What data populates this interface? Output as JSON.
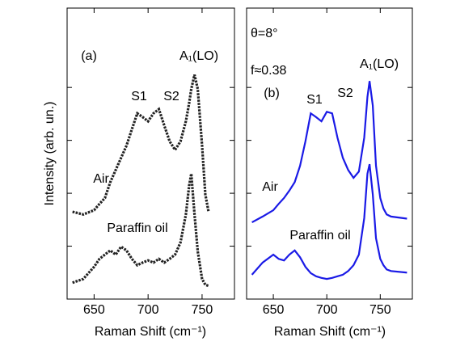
{
  "chart_data": [
    {
      "type": "line",
      "panel": "(a)",
      "ylabel": "Intensity (arb. un.)",
      "xlabel": "Raman Shift (cm⁻¹)",
      "annotations": [
        "S1",
        "S2",
        "A₁(LO)",
        "Air",
        "Paraffin oil"
      ],
      "xlim": [
        625,
        780
      ],
      "xticks": [
        650,
        700,
        750
      ],
      "ylim": [
        0,
        5.5
      ],
      "yticks": [
        1,
        2,
        3,
        4
      ],
      "x": [
        630,
        640,
        650,
        655,
        660,
        665,
        670,
        675,
        680,
        685,
        690,
        695,
        700,
        705,
        710,
        715,
        720,
        725,
        730,
        735,
        738,
        740,
        743,
        746,
        750,
        753,
        756
      ],
      "series": [
        {
          "name": "Air",
          "color": "#222222",
          "style": "dotted",
          "values": [
            1.65,
            1.6,
            1.68,
            1.8,
            1.91,
            2.21,
            2.44,
            2.67,
            2.9,
            3.21,
            3.51,
            3.44,
            3.36,
            3.51,
            3.59,
            3.28,
            2.98,
            2.82,
            2.98,
            3.36,
            3.7,
            3.97,
            4.24,
            3.97,
            2.9,
            1.98,
            1.65
          ]
        },
        {
          "name": "Paraffin oil",
          "color": "#222222",
          "style": "dotted",
          "values": [
            0.31,
            0.38,
            0.61,
            0.76,
            0.84,
            0.92,
            0.84,
            0.99,
            0.92,
            0.76,
            0.64,
            0.69,
            0.73,
            0.69,
            0.76,
            0.69,
            0.76,
            0.84,
            1.07,
            1.6,
            2.14,
            2.37,
            1.6,
            0.9,
            0.38,
            0.27,
            0.25
          ]
        }
      ]
    },
    {
      "type": "line",
      "panel": "(b)",
      "xlabel": "Raman Shift (cm⁻¹)",
      "annotations": [
        "θ=8°",
        "f≈0.38",
        "S1",
        "S2",
        "A₁(LO)",
        "Air",
        "Paraffin oil"
      ],
      "xlim": [
        625,
        780
      ],
      "xticks": [
        650,
        700,
        750
      ],
      "ylim": [
        0,
        5.5
      ],
      "yticks": [
        1,
        2,
        3,
        4
      ],
      "x": [
        630,
        640,
        650,
        655,
        660,
        665,
        670,
        675,
        680,
        685,
        690,
        695,
        700,
        705,
        710,
        715,
        720,
        725,
        730,
        735,
        738,
        740,
        743,
        746,
        750,
        753,
        756,
        760,
        775
      ],
      "series": [
        {
          "name": "Air",
          "color": "#1a1ae6",
          "style": "solid",
          "values": [
            1.45,
            1.56,
            1.68,
            1.8,
            1.91,
            2.05,
            2.21,
            2.52,
            2.98,
            3.51,
            3.44,
            3.36,
            3.54,
            3.51,
            3.05,
            2.67,
            2.44,
            2.29,
            2.41,
            3.05,
            3.82,
            4.12,
            3.66,
            2.52,
            1.91,
            1.71,
            1.6,
            1.56,
            1.52
          ]
        },
        {
          "name": "Paraffin oil",
          "color": "#1a1ae6",
          "style": "solid",
          "values": [
            0.46,
            0.69,
            0.84,
            0.76,
            0.73,
            0.84,
            0.92,
            0.79,
            0.61,
            0.49,
            0.43,
            0.4,
            0.38,
            0.4,
            0.43,
            0.46,
            0.53,
            0.64,
            0.84,
            1.53,
            2.37,
            2.55,
            1.98,
            1.15,
            0.76,
            0.64,
            0.56,
            0.53,
            0.5
          ]
        }
      ]
    }
  ]
}
